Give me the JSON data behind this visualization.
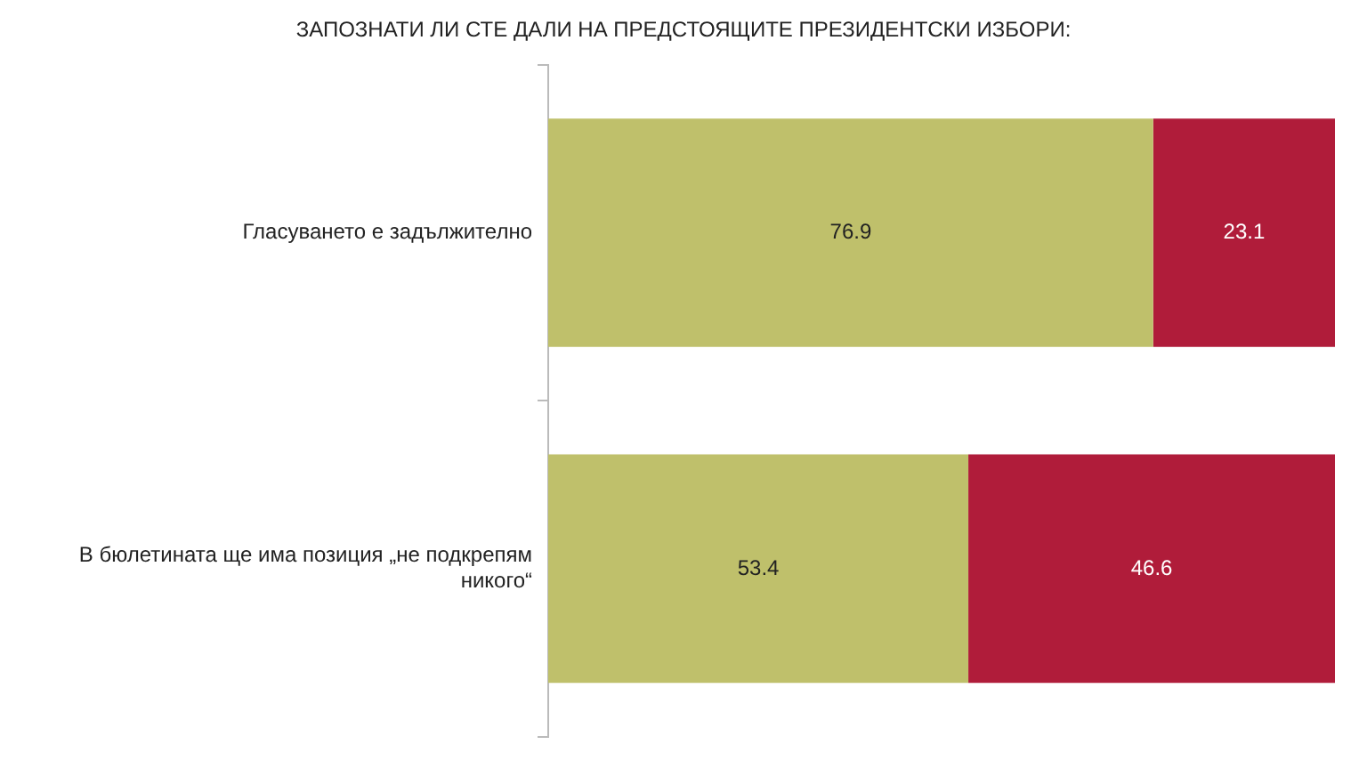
{
  "chart_data": {
    "type": "bar",
    "orientation": "horizontal",
    "stacked": true,
    "title": "ЗАПОЗНАТИ ЛИ СТЕ ДАЛИ НА ПРЕДСТОЯЩИТЕ ПРЕЗИДЕНТСКИ ИЗБОРИ:",
    "categories": [
      "Гласуването е задължително",
      "В бюлетината ще има позиция „не подкрепям никого“"
    ],
    "series": [
      {
        "color": "#bfc06b",
        "values": [
          76.9,
          53.4
        ]
      },
      {
        "color": "#b01c3a",
        "values": [
          23.1,
          46.6
        ]
      }
    ],
    "data_labels": true,
    "legend": false,
    "grid": false,
    "tick_labels": "y"
  }
}
